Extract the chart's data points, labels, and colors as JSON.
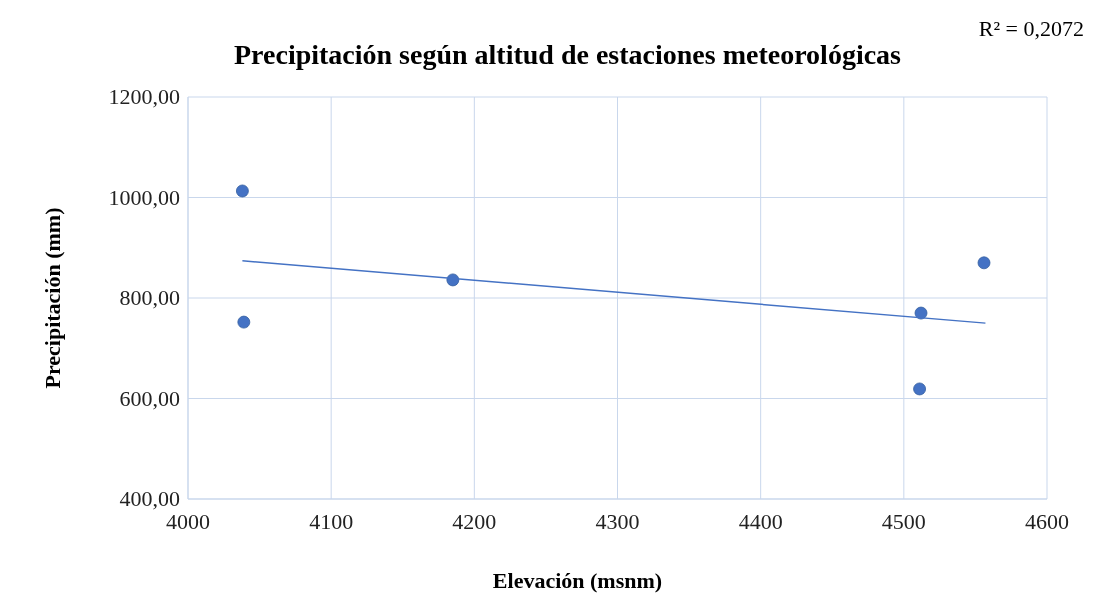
{
  "chart_data": {
    "type": "scatter",
    "title": "Precipitación según altitud de estaciones meteorológicas",
    "xlabel": "Elevación (msnm)",
    "ylabel": "Precipitación (mm)",
    "annotations": [
      "R² = 0,2072"
    ],
    "xlim": [
      4000,
      4600
    ],
    "xticks": [
      4000,
      4100,
      4200,
      4300,
      4400,
      4500,
      4600
    ],
    "ylim": [
      400,
      1200
    ],
    "yticks": [
      {
        "value": 400,
        "label": "400,00"
      },
      {
        "value": 600,
        "label": "600,00"
      },
      {
        "value": 800,
        "label": "800,00"
      },
      {
        "value": 1000,
        "label": "1000,00"
      },
      {
        "value": 1200,
        "label": "1200,00"
      }
    ],
    "grid": true,
    "marker": "circle",
    "series": [
      {
        "color": "#4472c4",
        "x": [
          4038,
          4039,
          4185,
          4512,
          4511,
          4556
        ],
        "values": [
          1013,
          752,
          836,
          770,
          619,
          870
        ]
      },
      {
        "type": "line",
        "color": "#4472c4",
        "marker": "none",
        "x": [
          4038,
          4557
        ],
        "values": [
          874,
          750
        ]
      }
    ]
  }
}
